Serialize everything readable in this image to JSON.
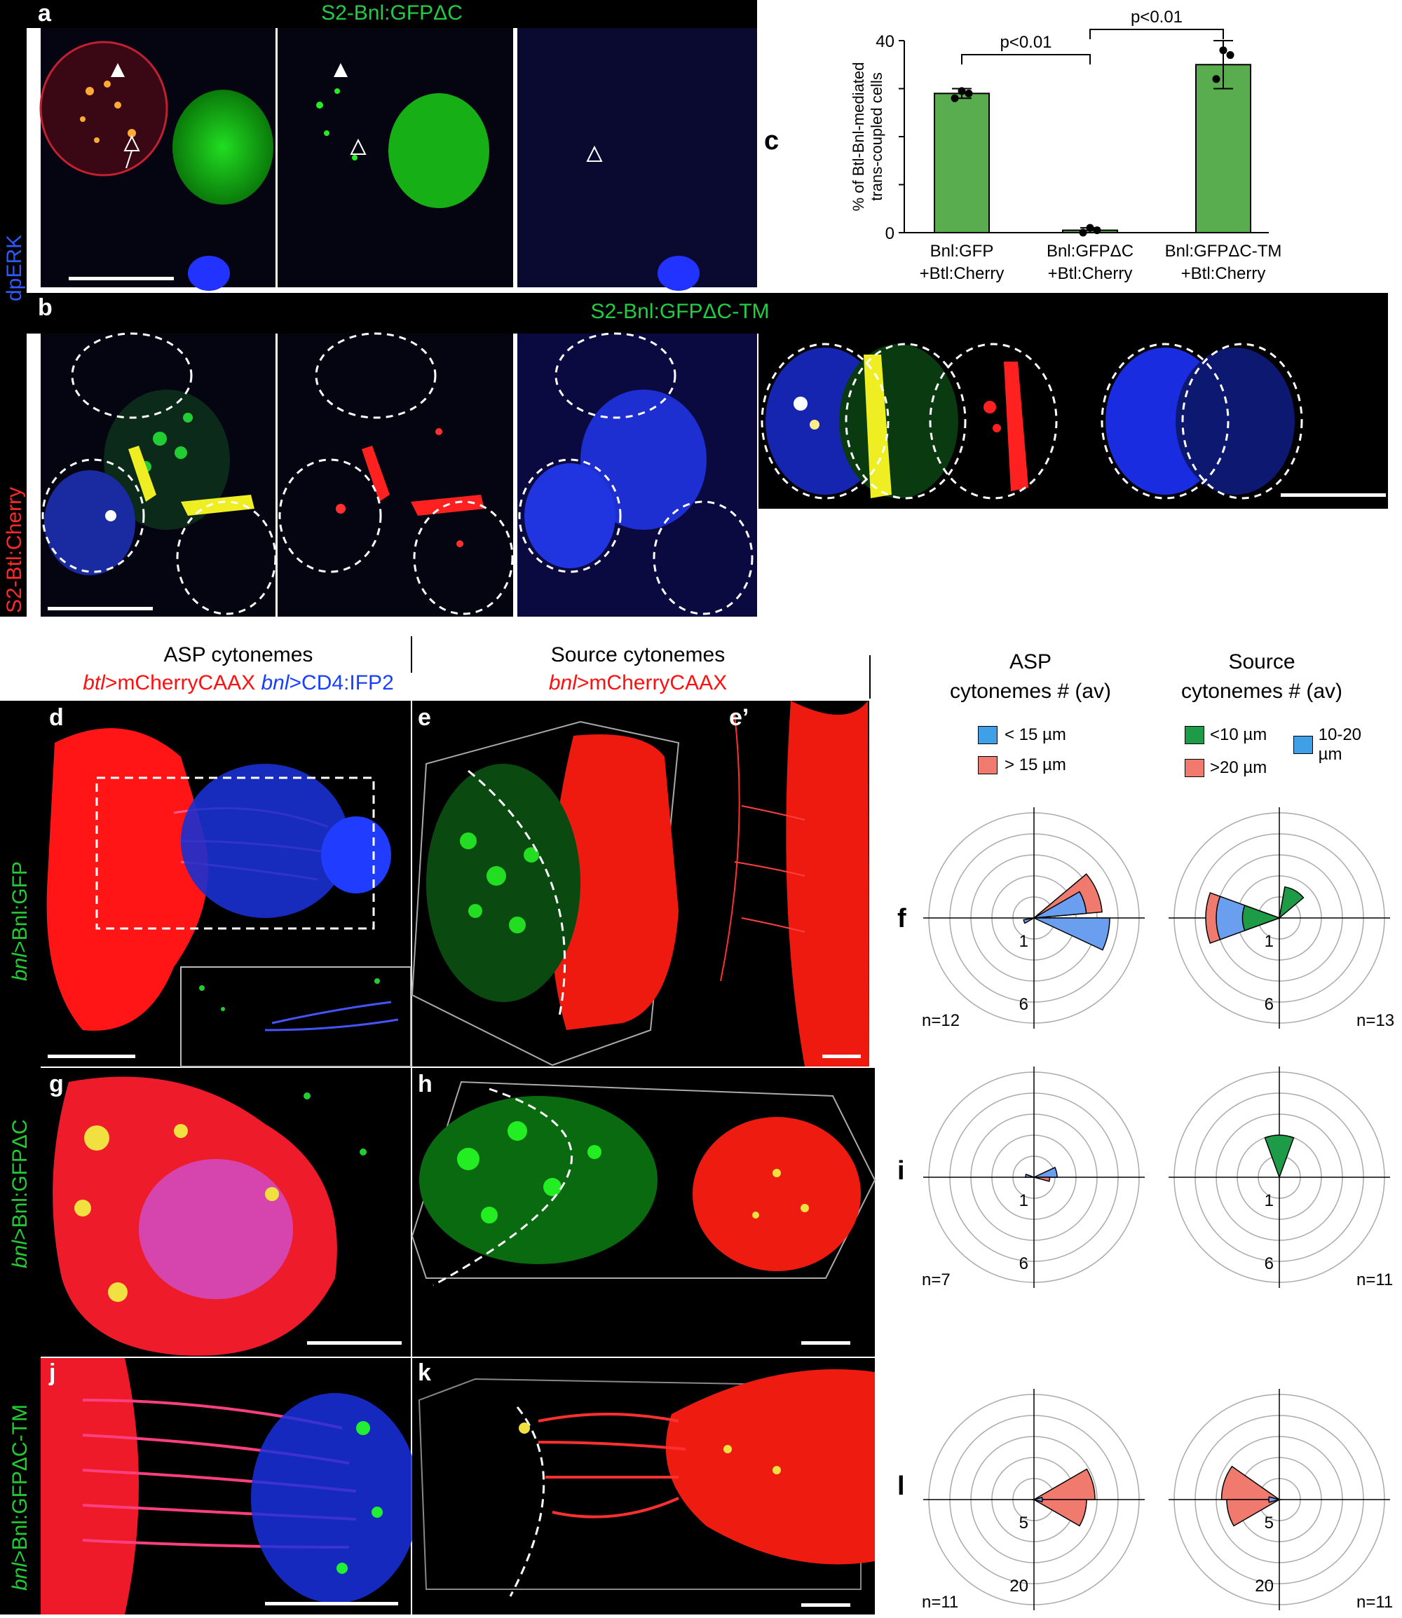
{
  "panel_labels": {
    "a": "a",
    "b": "b",
    "c": "c",
    "d": "d",
    "e": "e",
    "e2": "e’",
    "f": "f",
    "g": "g",
    "h": "h",
    "i": "i",
    "j": "j",
    "k": "k",
    "l": "l"
  },
  "top_titles": {
    "a": "S2-Bnl:GFPΔC",
    "b": "S2-Bnl:GFPΔC-TM"
  },
  "side_labels": {
    "red": "S2-Btl:Cherry",
    "blue": "dpERK"
  },
  "row_labels": {
    "d_em": "bnl",
    "d_rest": ">Bnl:GFP",
    "g_em": "bnl",
    "g_rest": ">Bnl:GFPΔC",
    "j_em": "bnl",
    "j_rest": ">Bnl:GFPΔC-TM"
  },
  "section_titles": {
    "asp": "ASP cytonemes",
    "asp_sub1_em": "btl",
    "asp_sub1": ">mCherryCAAX",
    "asp_sub2_em": "bnl",
    "asp_sub2": ">CD4:IFP2",
    "source": "Source cytonemes",
    "source_sub_em": "bnl",
    "source_sub": ">mCherryCAAX"
  },
  "polar": {
    "asp_title_1": "ASP",
    "asp_title_2": "cytonemes # (av)",
    "src_title_1": "Source",
    "src_title_2": "cytonemes # (av)",
    "asp_legend": [
      {
        "label": "< 15 µm",
        "color": "#3fa0e8"
      },
      {
        "label": "> 15 µm",
        "color": "#f07a6e"
      }
    ],
    "src_legend": [
      {
        "label": "<10 µm",
        "color": "#1e9b47"
      },
      {
        "label": "10-20 µm",
        "color": "#3fa0e8"
      },
      {
        "label": ">20 µm",
        "color": "#f07a6e"
      }
    ],
    "row_f": {
      "inner": "1",
      "outer": "6",
      "n_asp": "n=12",
      "n_src": "n=13"
    },
    "row_i": {
      "inner": "1",
      "outer": "6",
      "n_asp": "n=7",
      "n_src": "n=11"
    },
    "row_l": {
      "inner": "5",
      "outer": "20",
      "n_asp": "n=11",
      "n_src": "n=11"
    }
  },
  "colors": {
    "gfp": "#1ec81e",
    "cherry": "#ff2020",
    "blue": "#2233ff",
    "bar": "#5aad4e",
    "pink": "#f07a6e",
    "lightblue": "#6a9ff0",
    "green": "#1e9b47"
  },
  "chart_data": {
    "type": "bar",
    "categories": [
      "Bnl:GFP +Btl:Cherry",
      "Bnl:GFPΔC +Btl:Cherry",
      "Bnl:GFPΔC-TM +Btl:Cherry"
    ],
    "category_lines": [
      [
        "Bnl:GFP",
        "+Btl:Cherry"
      ],
      [
        "Bnl:GFPΔC",
        "+Btl:Cherry"
      ],
      [
        "Bnl:GFPΔC-TM",
        "+Btl:Cherry"
      ]
    ],
    "values": [
      29,
      0.5,
      35
    ],
    "errors": [
      1,
      0.5,
      5
    ],
    "points": [
      [
        28,
        29,
        29.5
      ],
      [
        0,
        0.5,
        1
      ],
      [
        32,
        37,
        38
      ]
    ],
    "ylabel_1": "% of Btl-Bnl-mediated",
    "ylabel_2": "trans-coupled cells",
    "ylim": [
      0,
      40
    ],
    "yticks": [
      "0",
      "40"
    ],
    "comparisons": [
      {
        "from": 0,
        "to": 1,
        "label": "p<0.01"
      },
      {
        "from": 1,
        "to": 2,
        "label": "p<0.01"
      }
    ]
  }
}
